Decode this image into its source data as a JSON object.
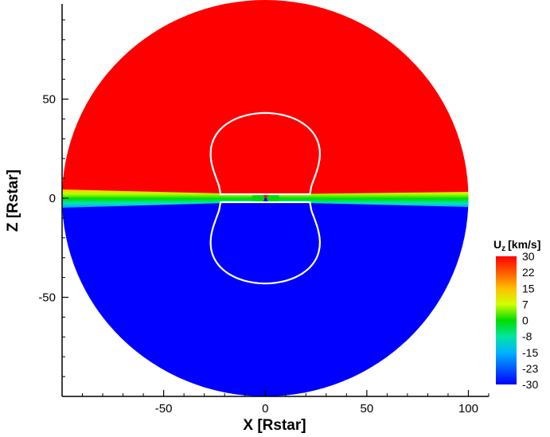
{
  "chart_data": {
    "type": "heatmap",
    "title": "",
    "xlabel": "X [Rstar]",
    "ylabel": "Z [Rstar]",
    "xlim": [
      -100,
      110
    ],
    "ylim": [
      -100,
      98
    ],
    "x_ticks": [
      -50,
      0,
      50,
      100
    ],
    "y_ticks": [
      -50,
      0,
      50
    ],
    "domain": {
      "shape": "disk",
      "radius": 100,
      "center": [
        0,
        0
      ]
    },
    "field": {
      "name": "U",
      "subscript": "z",
      "unit": "[km/s]",
      "upper_hemisphere_value": 30,
      "lower_hemisphere_value": -30,
      "equatorial_sheet_value": 0
    },
    "colorbar": {
      "levels": [
        30,
        22,
        15,
        7,
        0,
        -8,
        -15,
        -23,
        -30
      ],
      "range": [
        -30,
        30
      ],
      "colors": [
        "#ff0000",
        "#ff5a00",
        "#ffbe00",
        "#d2ff00",
        "#00dc00",
        "#00e6a0",
        "#00b4ff",
        "#005aff",
        "#0000ff"
      ]
    },
    "contours": [
      {
        "color": "#ffffff",
        "level": "white contour",
        "hemisphere": "upper",
        "z_max": 43,
        "x_extent": 40
      },
      {
        "color": "#ffffff",
        "level": "white contour",
        "hemisphere": "lower",
        "z_min": -43,
        "x_extent": 40
      }
    ]
  }
}
